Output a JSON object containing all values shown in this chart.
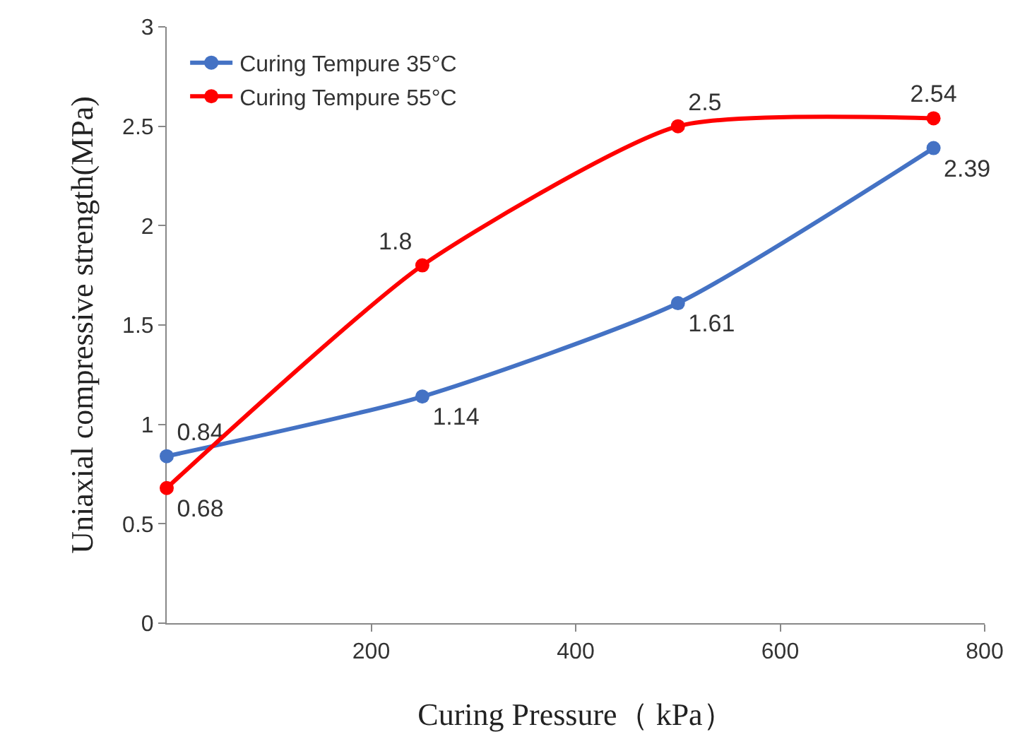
{
  "chart_data": {
    "type": "line",
    "xlabel": "Curing Pressure（ kPa）",
    "ylabel": "Uniaxial compressive strength(MPa)",
    "x": [
      0,
      250,
      500,
      750
    ],
    "series": [
      {
        "name": "Curing Tempure 35°C",
        "color": "#4472c4",
        "values": [
          0.84,
          1.14,
          1.61,
          2.39
        ]
      },
      {
        "name": "Curing Tempure 55°C",
        "color": "#ff0000",
        "values": [
          0.68,
          1.8,
          2.5,
          2.54
        ]
      }
    ],
    "xlim": [
      0,
      800
    ],
    "xticks": [
      200,
      400,
      600,
      800
    ],
    "ylim": [
      0,
      3
    ],
    "yticks": [
      0,
      0.5,
      1,
      1.5,
      2,
      2.5,
      3
    ],
    "legend": "top left",
    "marker": "circle",
    "line_style": "solid",
    "data_labels": true
  }
}
